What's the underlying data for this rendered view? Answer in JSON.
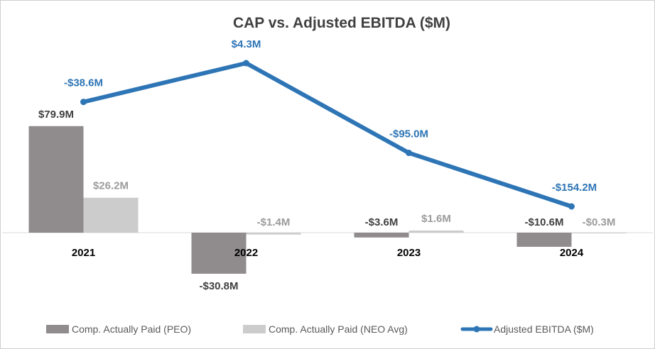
{
  "chart_data": {
    "type": "bar",
    "title": "CAP vs. Adjusted EBITDA ($M)",
    "categories": [
      "2021",
      "2022",
      "2023",
      "2024"
    ],
    "series": [
      {
        "name": "Comp. Actually Paid (PEO)",
        "kind": "bar",
        "values": [
          79.9,
          -30.8,
          -3.6,
          -10.6
        ],
        "labels": [
          "$79.9M",
          "-$30.8M",
          "-$3.6M",
          "-$10.6M"
        ],
        "color": "#908b8c"
      },
      {
        "name": "Comp. Actually Paid (NEO Avg)",
        "kind": "bar",
        "values": [
          26.2,
          -1.4,
          1.6,
          -0.3
        ],
        "labels": [
          "$26.2M",
          "-$1.4M",
          "$1.6M",
          "-$0.3M"
        ],
        "color": "#cccccc"
      },
      {
        "name": "Adjusted EBITDA ($M)",
        "kind": "line",
        "axis": "secondary",
        "values": [
          -38.6,
          4.3,
          -95.0,
          -154.2
        ],
        "labels": [
          "-$38.6M",
          "$4.3M",
          "-$95.0M",
          "-$154.2M"
        ],
        "color": "#2e75b6"
      }
    ],
    "legend_position": "bottom",
    "xlabel": "",
    "ylabel": ""
  }
}
